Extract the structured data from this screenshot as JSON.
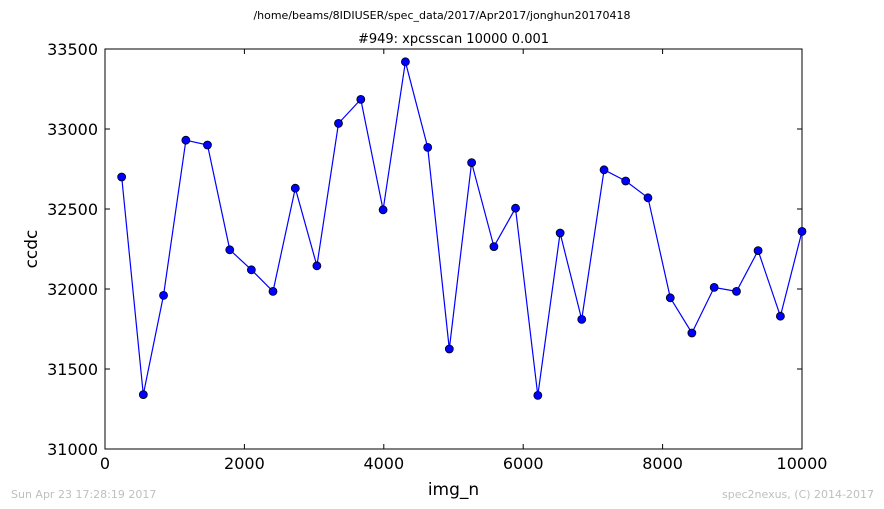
{
  "suptitle": "/home/beams/8IDIUSER/spec_data/2017/Apr2017/jonghun20170418",
  "timestamp": "Sun Apr 23 17:28:19 2017",
  "credit": "spec2nexus, (C) 2014-2017",
  "chart_data": {
    "type": "line",
    "title": "#949: xpcsscan 10000 0.001",
    "xlabel": "img_n",
    "ylabel": "ccdc",
    "xlim": [
      0,
      10000
    ],
    "ylim": [
      31000,
      33500
    ],
    "xticks": [
      "0",
      "2000",
      "4000",
      "6000",
      "8000",
      "10000"
    ],
    "yticks": [
      "31000",
      "31500",
      "32000",
      "32500",
      "33000",
      "33500"
    ],
    "xtick_values": [
      0,
      2000,
      4000,
      6000,
      8000,
      10000
    ],
    "ytick_values": [
      31000,
      31500,
      32000,
      32500,
      33000,
      33500
    ],
    "grid": false,
    "line_color": "#0000ff",
    "marker_color": "#0000ff",
    "series": [
      {
        "x": [
          239,
          550,
          840,
          1160,
          1470,
          1790,
          2100,
          2410,
          2730,
          3040,
          3350,
          3670,
          3990,
          4310,
          4630,
          4940,
          5260,
          5580,
          5890,
          6210,
          6530,
          6840,
          7160,
          7470,
          7790,
          8110,
          8420,
          8740,
          9060,
          9370,
          9690,
          10000
        ],
        "y": [
          32700,
          31340,
          31960,
          32930,
          32900,
          32245,
          32120,
          31985,
          32630,
          32145,
          33035,
          33185,
          32495,
          33420,
          32885,
          31625,
          32790,
          32265,
          32505,
          31335,
          32350,
          31810,
          32745,
          32675,
          32570,
          31945,
          31725,
          32010,
          31985,
          32240,
          31830,
          32360
        ]
      }
    ]
  }
}
